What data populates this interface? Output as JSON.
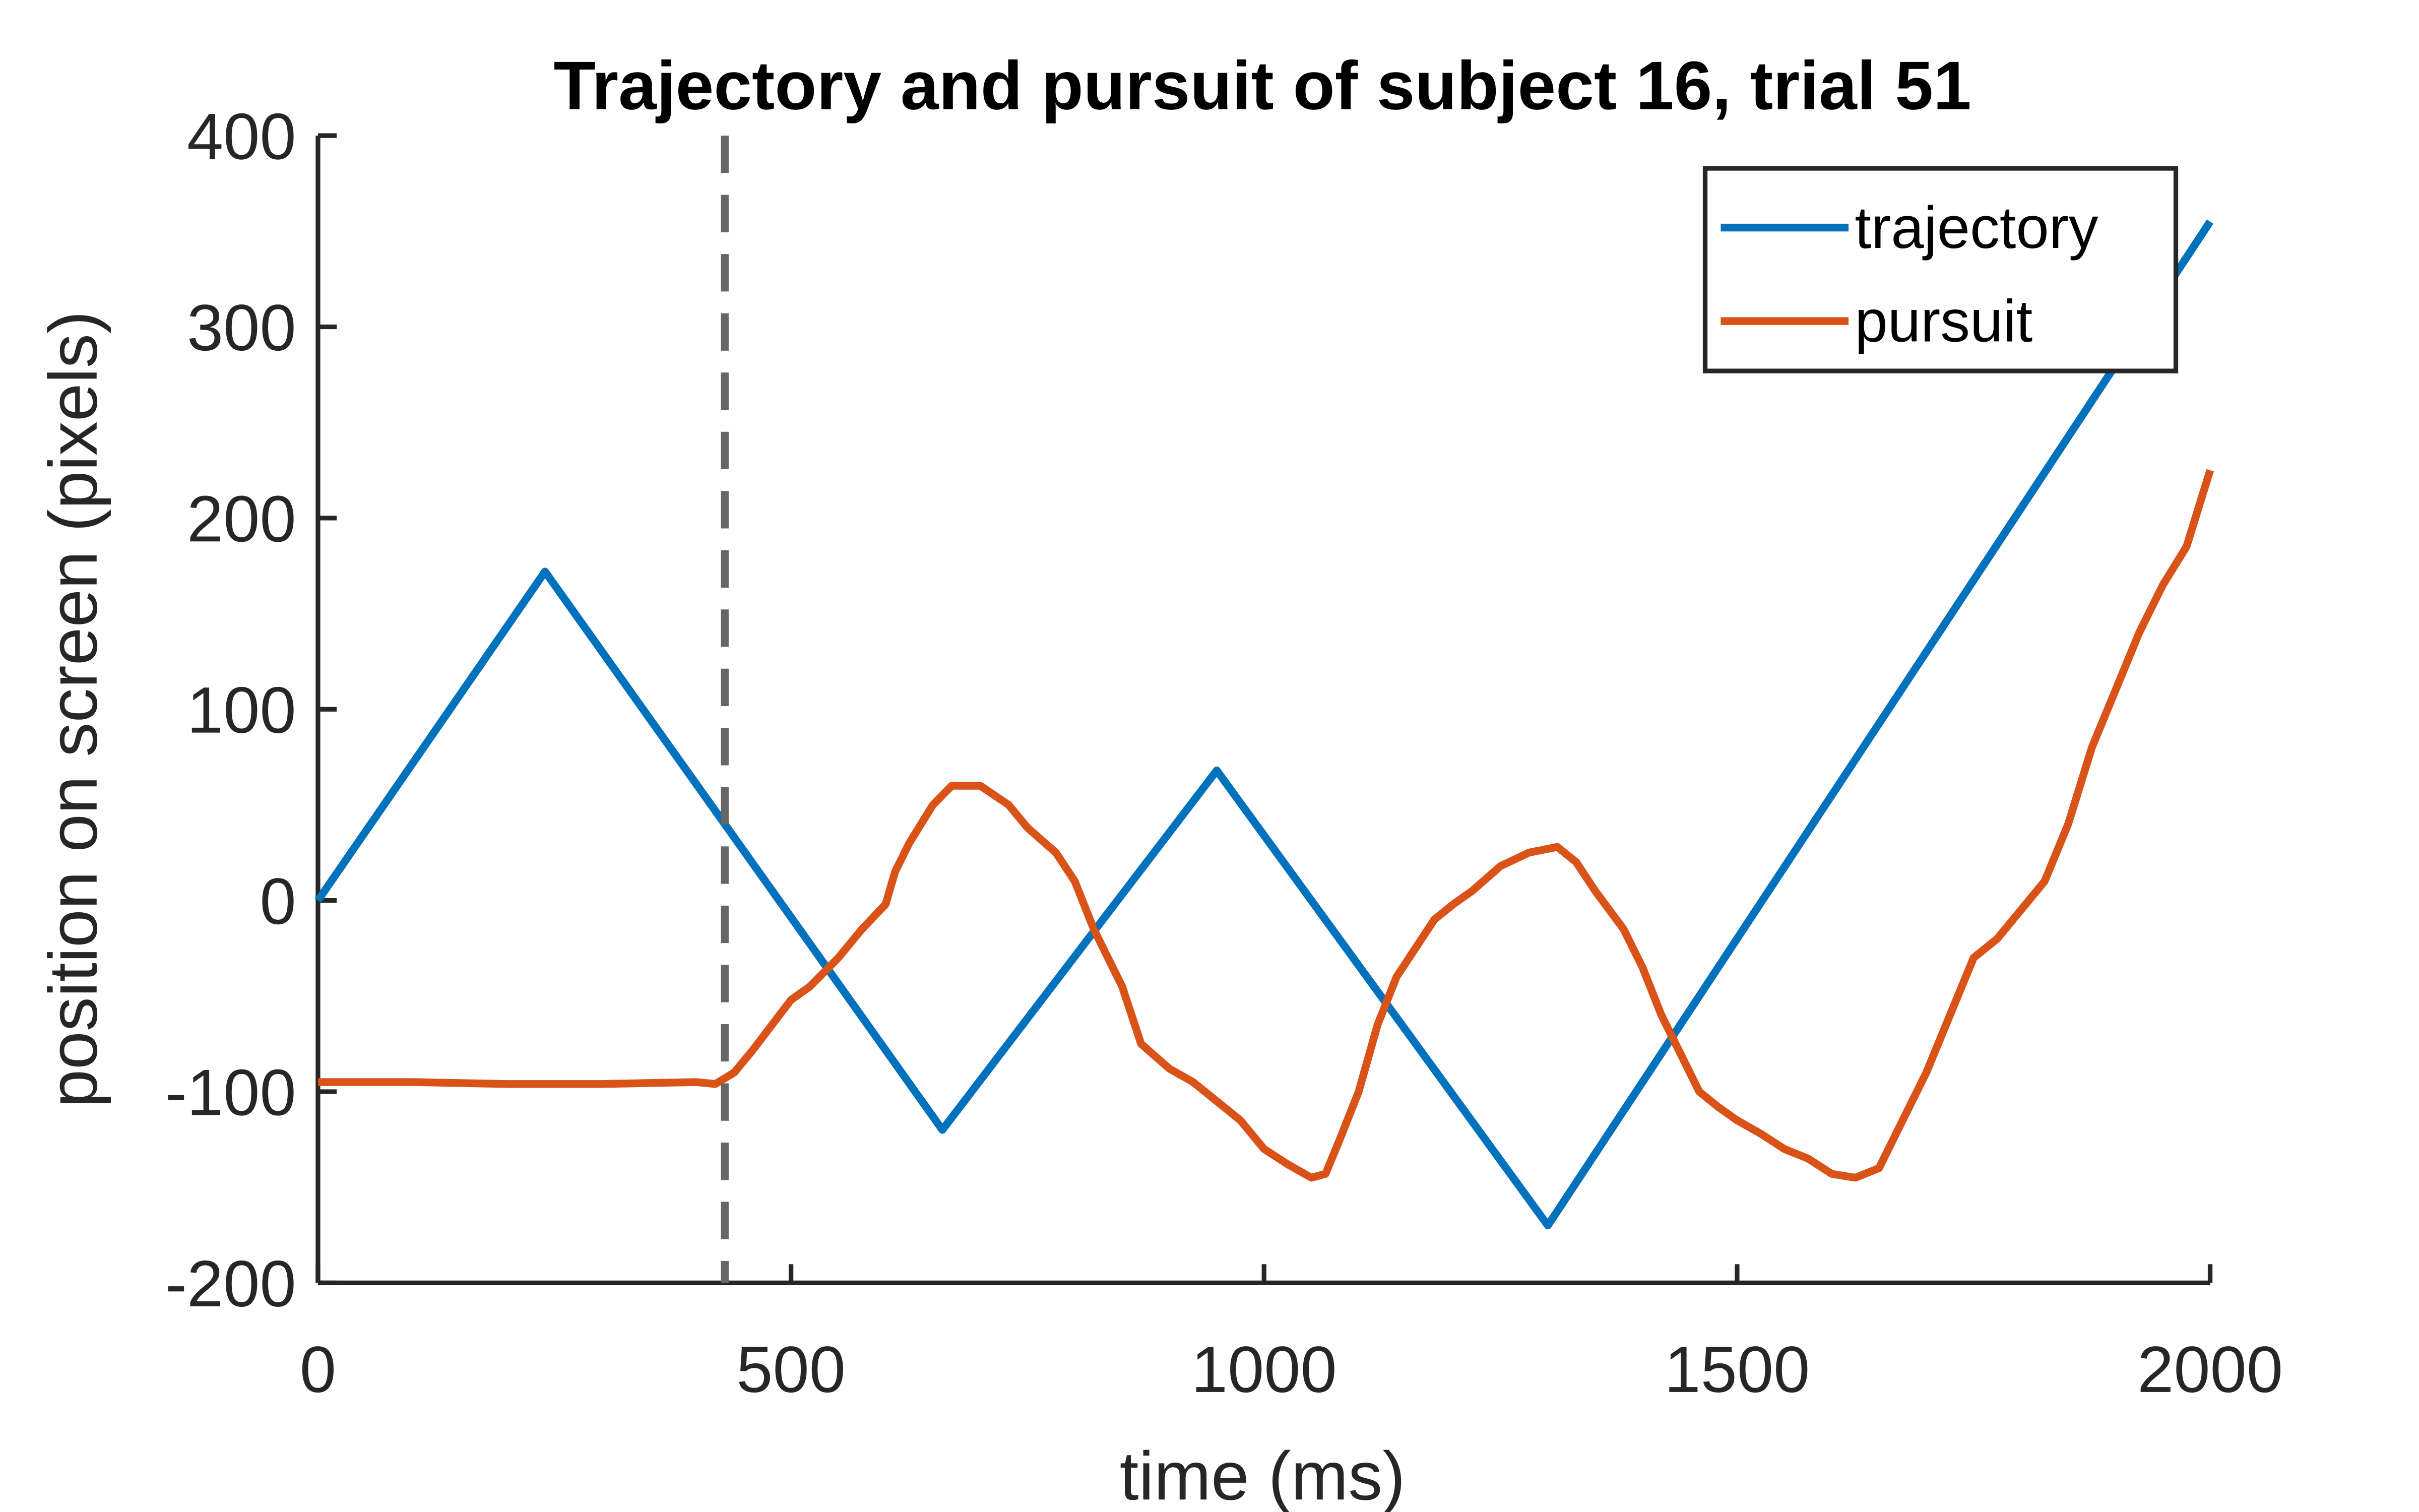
{
  "chart_data": {
    "type": "line",
    "title": "Trajectory and pursuit of subject 16, trial 51",
    "xlabel": "time (ms)",
    "ylabel": "position on screen (pixels)",
    "xlim": [
      0,
      2000
    ],
    "xticks": [
      0,
      500,
      1000,
      1500,
      2000
    ],
    "ylim": [
      -200,
      400
    ],
    "yticks": [
      -200,
      -100,
      0,
      100,
      200,
      300,
      400
    ],
    "vlines": [
      430
    ],
    "legend": "upper right",
    "series": [
      {
        "name": "trajectory",
        "color": "#0072bd",
        "x": [
          0,
          240,
          660,
          950,
          1300,
          2000
        ],
        "values": [
          0,
          172,
          -120,
          68,
          -170,
          355
        ]
      },
      {
        "name": "pursuit",
        "color": "#d95319",
        "x": [
          0,
          100,
          200,
          300,
          400,
          420,
          440,
          460,
          480,
          500,
          520,
          550,
          575,
          600,
          610,
          625,
          650,
          670,
          700,
          730,
          750,
          780,
          800,
          820,
          850,
          870,
          900,
          925,
          950,
          975,
          1000,
          1025,
          1050,
          1065,
          1080,
          1100,
          1120,
          1140,
          1160,
          1180,
          1200,
          1220,
          1250,
          1280,
          1310,
          1330,
          1350,
          1380,
          1400,
          1420,
          1440,
          1460,
          1480,
          1500,
          1525,
          1550,
          1575,
          1600,
          1625,
          1650,
          1670,
          1700,
          1725,
          1750,
          1775,
          1800,
          1825,
          1850,
          1875,
          1900,
          1925,
          1950,
          1975,
          2000
        ],
        "values": [
          -95,
          -95,
          -96,
          -96,
          -95,
          -96,
          -90,
          -78,
          -65,
          -52,
          -45,
          -30,
          -15,
          -2,
          15,
          30,
          50,
          60,
          60,
          50,
          38,
          25,
          10,
          -15,
          -45,
          -75,
          -88,
          -95,
          -105,
          -115,
          -130,
          -138,
          -145,
          -143,
          -125,
          -100,
          -65,
          -40,
          -25,
          -10,
          -2,
          5,
          18,
          25,
          28,
          20,
          5,
          -15,
          -35,
          -60,
          -80,
          -100,
          -108,
          -115,
          -122,
          -130,
          -135,
          -143,
          -145,
          -140,
          -120,
          -90,
          -60,
          -30,
          -20,
          -5,
          10,
          40,
          80,
          110,
          140,
          165,
          185,
          225
        ]
      }
    ]
  }
}
